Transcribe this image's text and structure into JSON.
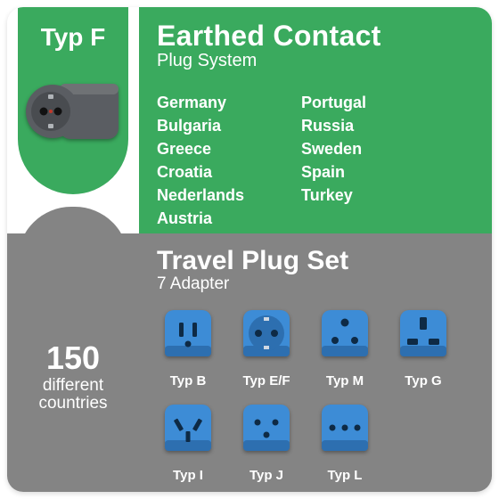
{
  "colors": {
    "green": "#3aaa5e",
    "gray": "#848484",
    "gray_dark": "#6f7275",
    "plug_body": "#5a5d62",
    "plug_face": "#494c50",
    "adapter_blue": "#3d8cd6",
    "adapter_blue_dark": "#2d6fb0",
    "white": "#ffffff"
  },
  "badge": {
    "label": "Typ F"
  },
  "earthed": {
    "title": "Earthed Contact",
    "subtitle": "Plug System",
    "countries_col1": [
      "Germany",
      "Bulgaria",
      "Greece",
      "Croatia",
      "Nederlands",
      "Austria"
    ],
    "countries_col2": [
      "Portugal",
      "Russia",
      "Sweden",
      "Spain",
      "Turkey"
    ]
  },
  "left": {
    "count": "150",
    "line1": "different",
    "line2": "countries"
  },
  "travel": {
    "title": "Travel Plug Set",
    "subtitle": "7 Adapter",
    "adapters": [
      {
        "label": "Typ B",
        "shape": "B"
      },
      {
        "label": "Typ E/F",
        "shape": "EF"
      },
      {
        "label": "Typ M",
        "shape": "M"
      },
      {
        "label": "Typ G",
        "shape": "G"
      },
      {
        "label": "Typ I",
        "shape": "I"
      },
      {
        "label": "Typ J",
        "shape": "J"
      },
      {
        "label": "Typ L",
        "shape": "L"
      }
    ]
  }
}
